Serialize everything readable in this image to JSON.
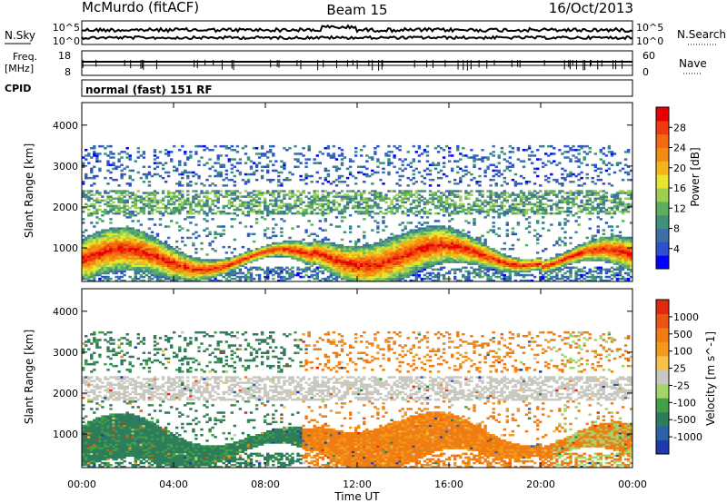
{
  "header": {
    "station": "McMurdo (fitACF)",
    "beam": "Beam 15",
    "date": "16/Oct/2013"
  },
  "strips": {
    "nsky_label": "N.Sky",
    "nsearch_label": "N.Search",
    "nsky_ticks": [
      "10^5",
      "10^0"
    ],
    "nsearch_ticks": [
      "10^5",
      "10^0"
    ],
    "freq_label": "Freq.",
    "freq_unit": "[MHz]",
    "freq_ticks": [
      "18",
      "8"
    ],
    "nave_label": "Nave",
    "nave_ticks": [
      "60",
      "0"
    ],
    "cpid_label": "CPID",
    "cpid_text": "normal (fast) 151 RF"
  },
  "chart_data": [
    {
      "type": "heatmap",
      "name": "power",
      "ylabel": "Slant Range [km]",
      "ylim": [
        180,
        4550
      ],
      "yticks": [
        1000,
        2000,
        3000,
        4000
      ],
      "colorbar": {
        "label": "Power [dB]",
        "range": [
          0,
          32
        ],
        "ticks": [
          4,
          8,
          12,
          16,
          20,
          24,
          28
        ],
        "colors": [
          "#0000ff",
          "#2f4fcf",
          "#3c6fa5",
          "#40907a",
          "#5fae5f",
          "#9cd04e",
          "#e6e52f",
          "#f7b31b",
          "#f58a12",
          "#f46810",
          "#ee3a0e",
          "#e80000"
        ]
      }
    },
    {
      "type": "heatmap",
      "name": "velocity",
      "ylabel": "Slant Range [km]",
      "ylim": [
        180,
        4550
      ],
      "yticks": [
        1000,
        2000,
        3000,
        4000
      ],
      "colorbar": {
        "label": "Velocity [m s^-1]",
        "ticks": [
          "1000",
          "500",
          "100",
          "25",
          "-25",
          "-100",
          "-500",
          "-1000"
        ],
        "colors": [
          "#1e3aa8",
          "#2c62a6",
          "#2e7d5a",
          "#43a047",
          "#a5d46b",
          "#c8c8c0",
          "#f6c24a",
          "#f39a1a",
          "#ef7d13",
          "#ea5512",
          "#e02a10"
        ]
      }
    }
  ],
  "time_axis": {
    "xlabel": "Time UT",
    "xticks": [
      "00:00",
      "04:00",
      "08:00",
      "12:00",
      "16:00",
      "20:00",
      "00:00"
    ]
  }
}
